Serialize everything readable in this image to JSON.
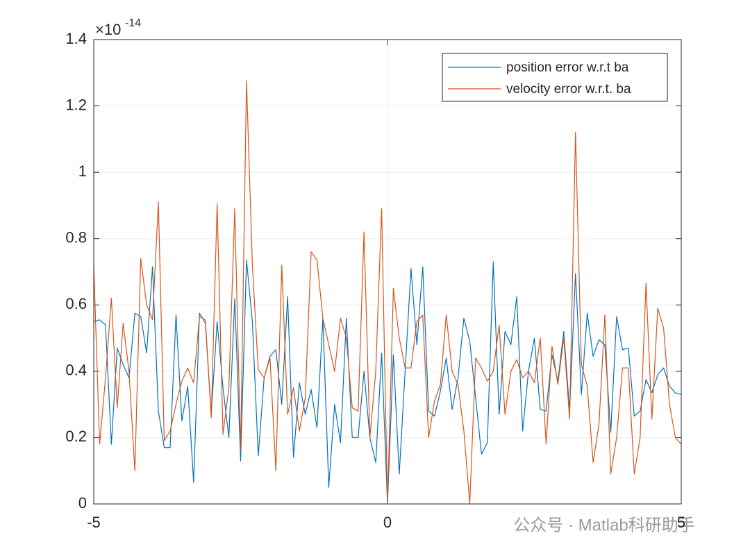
{
  "chart_data": {
    "type": "line",
    "y_exponent": {
      "base": "×10",
      "power": "-14"
    },
    "xlim": [
      -5,
      5
    ],
    "xticks": [
      -5,
      0,
      5
    ],
    "ylim": [
      0,
      1.4
    ],
    "yticks": [
      0,
      0.2,
      0.4,
      0.6,
      0.8,
      1,
      1.2,
      1.4
    ],
    "grid": true,
    "legend": "top-right",
    "x": [
      -5,
      -4.9,
      -4.8,
      -4.7,
      -4.6,
      -4.5,
      -4.4,
      -4.3,
      -4.2,
      -4.1,
      -4,
      -3.9,
      -3.8,
      -3.7,
      -3.6,
      -3.5,
      -3.4,
      -3.3,
      -3.2,
      -3.1,
      -3,
      -2.9,
      -2.8,
      -2.7,
      -2.6,
      -2.5,
      -2.4,
      -2.3,
      -2.2,
      -2.1,
      -2,
      -1.9,
      -1.8,
      -1.7,
      -1.6,
      -1.5,
      -1.4,
      -1.3,
      -1.2,
      -1.1,
      -1,
      -0.9,
      -0.8,
      -0.7,
      -0.6,
      -0.5,
      -0.4,
      -0.3,
      -0.2,
      -0.1,
      0,
      0.1,
      0.2,
      0.3,
      0.4,
      0.5,
      0.6,
      0.7,
      0.8,
      0.9,
      1,
      1.1,
      1.2,
      1.3,
      1.4,
      1.5,
      1.6,
      1.7,
      1.8,
      1.9,
      2,
      2.1,
      2.2,
      2.3,
      2.4,
      2.5,
      2.6,
      2.7,
      2.8,
      2.9,
      3,
      3.1,
      3.2,
      3.3,
      3.4,
      3.5,
      3.6,
      3.7,
      3.8,
      3.9,
      4,
      4.1,
      4.2,
      4.3,
      4.4,
      4.5,
      4.6,
      4.7,
      4.8,
      4.9,
      5
    ],
    "series": [
      {
        "name": "position error w.r.t ba",
        "color": "#0072BD",
        "values": [
          0.55,
          0.555,
          0.54,
          0.18,
          0.47,
          0.42,
          0.38,
          0.575,
          0.565,
          0.455,
          0.715,
          0.28,
          0.17,
          0.17,
          0.57,
          0.25,
          0.355,
          0.065,
          0.575,
          0.545,
          0.27,
          0.55,
          0.35,
          0.2,
          0.62,
          0.13,
          0.735,
          0.55,
          0.145,
          0.38,
          0.445,
          0.465,
          0.3,
          0.625,
          0.14,
          0.365,
          0.27,
          0.345,
          0.23,
          0.56,
          0.05,
          0.3,
          0.185,
          0.56,
          0.2,
          0.2,
          0.4,
          0.2,
          0.125,
          0.455,
          0.0,
          0.45,
          0.09,
          0.4,
          0.71,
          0.48,
          0.715,
          0.28,
          0.265,
          0.34,
          0.44,
          0.285,
          0.38,
          0.56,
          0.49,
          0.32,
          0.15,
          0.185,
          0.73,
          0.27,
          0.52,
          0.48,
          0.625,
          0.22,
          0.4,
          0.5,
          0.285,
          0.28,
          0.45,
          0.37,
          0.52,
          0.28,
          0.695,
          0.33,
          0.575,
          0.445,
          0.495,
          0.48,
          0.215,
          0.565,
          0.465,
          0.47,
          0.265,
          0.28,
          0.375,
          0.335,
          0.39,
          0.41,
          0.355,
          0.335,
          0.33
        ]
      },
      {
        "name": "velocity error w.r.t. ba",
        "color": "#D95319",
        "values": [
          0.72,
          0.18,
          0.38,
          0.62,
          0.29,
          0.545,
          0.4,
          0.1,
          0.74,
          0.6,
          0.555,
          0.91,
          0.19,
          0.22,
          0.3,
          0.37,
          0.41,
          0.365,
          0.565,
          0.555,
          0.26,
          0.905,
          0.21,
          0.35,
          0.89,
          0.16,
          1.275,
          0.72,
          0.405,
          0.38,
          0.44,
          0.1,
          0.72,
          0.27,
          0.35,
          0.22,
          0.32,
          0.76,
          0.735,
          0.56,
          0.48,
          0.4,
          0.56,
          0.5,
          0.29,
          0.28,
          0.82,
          0.2,
          0.4,
          0.89,
          0.0,
          0.65,
          0.5,
          0.41,
          0.41,
          0.55,
          0.57,
          0.2,
          0.31,
          0.36,
          0.57,
          0.4,
          0.36,
          0.22,
          0.0,
          0.44,
          0.41,
          0.37,
          0.4,
          0.54,
          0.27,
          0.4,
          0.435,
          0.38,
          0.4,
          0.365,
          0.5,
          0.18,
          0.475,
          0.36,
          0.5,
          0.255,
          1.12,
          0.42,
          0.355,
          0.125,
          0.24,
          0.57,
          0.09,
          0.2,
          0.41,
          0.41,
          0.09,
          0.2,
          0.665,
          0.255,
          0.59,
          0.53,
          0.3,
          0.2,
          0.18
        ]
      }
    ]
  },
  "watermark": "公众号 · Matlab科研助手"
}
